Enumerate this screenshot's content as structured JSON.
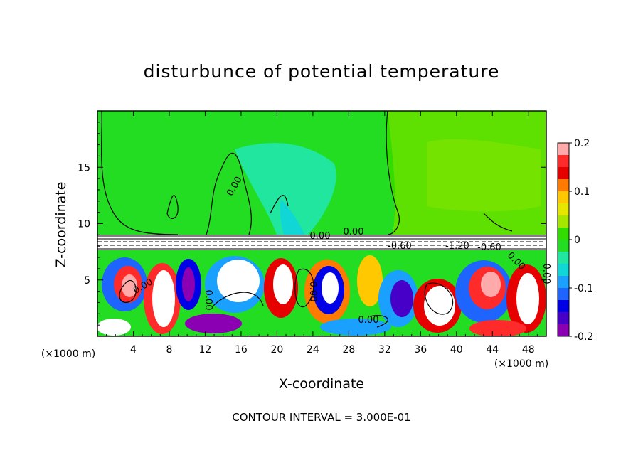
{
  "chart_data": {
    "type": "heatmap",
    "title": "disturbunce of potential temperature",
    "xlabel": "X-coordinate",
    "ylabel": "Z-coordinate",
    "x_unit_label": "(×1000 m)",
    "y_unit_label": "(×1000 m)",
    "xlim": [
      0,
      50
    ],
    "ylim": [
      0,
      20
    ],
    "x_ticks": [
      "4",
      "8",
      "12",
      "16",
      "20",
      "24",
      "28",
      "32",
      "36",
      "40",
      "44",
      "48"
    ],
    "y_ticks": [
      "5",
      "10",
      "15"
    ],
    "colorbar": {
      "range": [
        -0.2,
        0.2
      ],
      "tick_labels": [
        "0.2",
        "0.1",
        "0",
        "-0.1",
        "-0.2"
      ],
      "colors": [
        "#ffaaaa",
        "#ff2a2a",
        "#e60000",
        "#ff7a00",
        "#ffc800",
        "#e6e600",
        "#a6e600",
        "#32dc00",
        "#22dd22",
        "#20e6a0",
        "#10d6d6",
        "#1aa0ff",
        "#1e64ff",
        "#0000e6",
        "#4600c8",
        "#8c00b4"
      ]
    },
    "contour_labels": [
      "0.00",
      "0.00",
      "-0.60",
      "-1.20",
      "-0.60",
      "0.00",
      "0.00",
      "0.00",
      "0.00",
      "0.00",
      "0.00",
      "0.00"
    ],
    "contour_interval_text": "CONTOUR INTERVAL = 3.000E-01"
  }
}
